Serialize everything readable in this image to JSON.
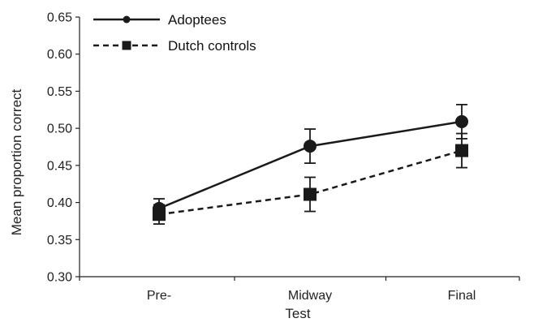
{
  "chart_data": {
    "type": "line",
    "title": "",
    "xlabel": "Test",
    "ylabel": "Mean proportion correct",
    "categories": [
      "Pre-",
      "Midway",
      "Final"
    ],
    "ylim": [
      0.3,
      0.65
    ],
    "yticks": [
      "0.30",
      "0.35",
      "0.40",
      "0.45",
      "0.50",
      "0.55",
      "0.60",
      "0.65"
    ],
    "grid": false,
    "legend_position": "top-left",
    "series": [
      {
        "name": "Adoptees",
        "values": [
          0.392,
          0.476,
          0.509
        ],
        "error": [
          0.013,
          0.023,
          0.023
        ],
        "marker": "circle",
        "line": "solid",
        "color": "#1a1a1a"
      },
      {
        "name": "Dutch controls",
        "values": [
          0.384,
          0.411,
          0.47
        ],
        "error": [
          0.013,
          0.023,
          0.023
        ],
        "marker": "square",
        "line": "dashed",
        "color": "#1a1a1a"
      }
    ]
  }
}
